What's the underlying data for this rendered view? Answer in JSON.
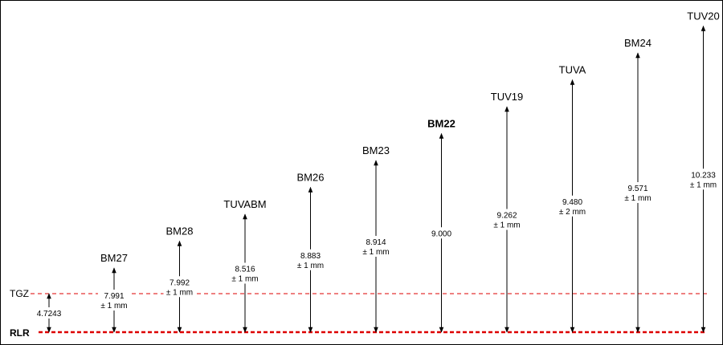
{
  "datum": {
    "label": "RLR"
  },
  "reference": {
    "label": "TGZ",
    "value": "4.7243"
  },
  "benchmarks": [
    {
      "label": "BM27",
      "value": "7.991",
      "tolerance": "± 1 mm"
    },
    {
      "label": "BM28",
      "value": "7.992",
      "tolerance": "± 1 mm"
    },
    {
      "label": "TUVABM",
      "value": "8.516",
      "tolerance": "± 1 mm"
    },
    {
      "label": "BM26",
      "value": "8.883",
      "tolerance": "± 1 mm"
    },
    {
      "label": "BM23",
      "value": "8.914",
      "tolerance": "± 1 mm"
    },
    {
      "label": "BM22",
      "value": "9.000"
    },
    {
      "label": "TUV19",
      "value": "9.262",
      "tolerance": "± 1 mm"
    },
    {
      "label": "TUVA",
      "value": "9.480",
      "tolerance": "± 2 mm"
    },
    {
      "label": "BM24",
      "value": "9.571",
      "tolerance": "± 1 mm"
    },
    {
      "label": "TUV20",
      "value": "10.233",
      "tolerance": "± 1 mm"
    }
  ]
}
